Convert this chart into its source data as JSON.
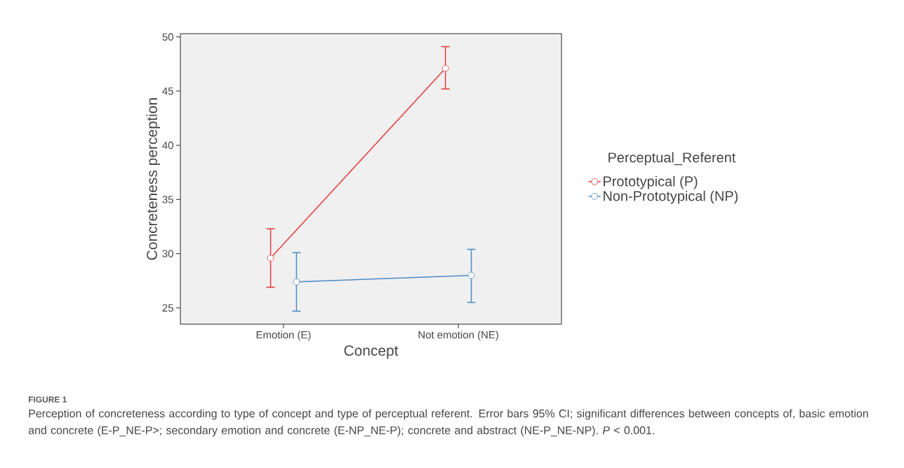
{
  "chart_data": {
    "type": "line",
    "title": "FIGURE 1",
    "xlabel": "Concept",
    "ylabel": "Concreteness perception",
    "legend_title": "Perceptual_Referent",
    "categories": [
      "Emotion (E)",
      "Not emotion (NE)"
    ],
    "series": [
      {
        "name": "Prototypical (P)",
        "color": "#e3393c",
        "values": [
          29.6,
          47.1
        ],
        "errors": [
          [
            26.9,
            32.3
          ],
          [
            45.2,
            49.1
          ]
        ]
      },
      {
        "name": "Non-Prototypical (NP)",
        "color": "#4a8ac4",
        "values": [
          27.4,
          28.0
        ],
        "errors": [
          [
            24.7,
            30.1
          ],
          [
            25.5,
            30.4
          ]
        ]
      }
    ],
    "ylim": [
      23.5,
      50.3
    ],
    "yticks": [
      25,
      30,
      35,
      40,
      45,
      50
    ],
    "grid": false,
    "legend": "right",
    "marker": "circle",
    "line_style": "solid",
    "annotations": [
      "Perception of concreteness according to type of concept and type of perceptual referent. Error bars 95% CI; significant differences between concepts of, basic emotion and concrete (E-P_NE-P>; secondary emotion and concrete (E-NP_NE-P); concrete and abstract (NE-P_NE-NP). *P* < 0.001."
    ]
  }
}
